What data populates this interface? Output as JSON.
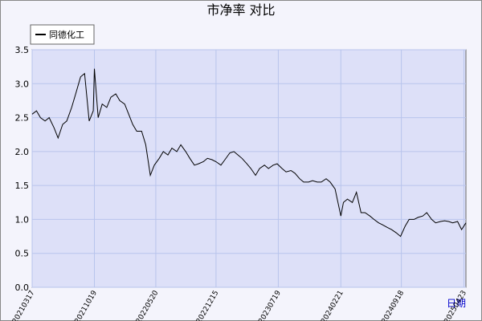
{
  "chart_data": {
    "type": "line",
    "title": "市净率  对比",
    "x_label": "日期",
    "x": [
      "20210317",
      "20210401",
      "20210415",
      "20210501",
      "20210515",
      "20210601",
      "20210615",
      "20210701",
      "20210715",
      "20210801",
      "20210815",
      "20210901",
      "20210915",
      "20211001",
      "20211015",
      "20211019",
      "20211101",
      "20211115",
      "20211201",
      "20211215",
      "20220101",
      "20220115",
      "20220201",
      "20220215",
      "20220301",
      "20220315",
      "20220401",
      "20220415",
      "20220501",
      "20220515",
      "20220601",
      "20220615",
      "20220701",
      "20220715",
      "20220801",
      "20220815",
      "20220901",
      "20220915",
      "20221001",
      "20221015",
      "20221101",
      "20221115",
      "20221201",
      "20221215",
      "20230101",
      "20230115",
      "20230201",
      "20230215",
      "20230301",
      "20230315",
      "20230401",
      "20230415",
      "20230501",
      "20230515",
      "20230601",
      "20230615",
      "20230701",
      "20230715",
      "20230801",
      "20230815",
      "20230901",
      "20230915",
      "20231001",
      "20231015",
      "20231101",
      "20231115",
      "20231201",
      "20231215",
      "20240101",
      "20240115",
      "20240201",
      "20240221",
      "20240301",
      "20240315",
      "20240401",
      "20240415",
      "20240501",
      "20240515",
      "20240601",
      "20240615",
      "20240701",
      "20240715",
      "20240801",
      "20240815",
      "20240901",
      "20240915",
      "20241001",
      "20241015",
      "20241101",
      "20241115",
      "20241201",
      "20241215",
      "20250101",
      "20250115",
      "20250201",
      "20250215",
      "20250301",
      "20250315",
      "20250401",
      "20250415",
      "20250430"
    ],
    "series": [
      {
        "name": "同德化工",
        "color": "#000000",
        "values": [
          2.55,
          2.6,
          2.5,
          2.45,
          2.5,
          2.35,
          2.2,
          2.4,
          2.45,
          2.65,
          2.85,
          3.1,
          3.15,
          2.45,
          2.6,
          3.22,
          2.5,
          2.7,
          2.65,
          2.8,
          2.85,
          2.75,
          2.7,
          2.55,
          2.4,
          2.3,
          2.3,
          2.1,
          1.65,
          1.8,
          1.9,
          2.0,
          1.95,
          2.05,
          2.0,
          2.1,
          2.0,
          1.9,
          1.8,
          1.82,
          1.85,
          1.9,
          1.88,
          1.85,
          1.8,
          1.88,
          1.98,
          2.0,
          1.95,
          1.9,
          1.82,
          1.75,
          1.65,
          1.75,
          1.8,
          1.75,
          1.8,
          1.82,
          1.75,
          1.7,
          1.72,
          1.68,
          1.6,
          1.55,
          1.55,
          1.57,
          1.55,
          1.55,
          1.6,
          1.55,
          1.45,
          1.05,
          1.25,
          1.3,
          1.25,
          1.4,
          1.1,
          1.1,
          1.05,
          1.0,
          0.95,
          0.92,
          0.88,
          0.85,
          0.8,
          0.75,
          0.9,
          1.0,
          1.0,
          1.03,
          1.05,
          1.1,
          1.0,
          0.95,
          0.97,
          0.98,
          0.97,
          0.95,
          0.97,
          0.85,
          0.95
        ]
      }
    ],
    "xlim": [
      "20210317",
      "20250430"
    ],
    "xticks": [
      "20210317",
      "20211019",
      "20220520",
      "20221215",
      "20230719",
      "20240221",
      "20240918",
      "20250423"
    ],
    "ylim": [
      0,
      3.5
    ],
    "yticks": [
      {
        "value": 0,
        "label": "0.0"
      },
      {
        "value": 0.5,
        "label": "0.5"
      },
      {
        "value": 1,
        "label": "1.0"
      },
      {
        "value": 1.5,
        "label": "1.5"
      },
      {
        "value": 2,
        "label": "2.0"
      },
      {
        "value": 2.5,
        "label": "2.5"
      },
      {
        "value": 3,
        "label": "3.0"
      },
      {
        "value": 3.5,
        "label": "3.5"
      }
    ],
    "grid": true
  }
}
